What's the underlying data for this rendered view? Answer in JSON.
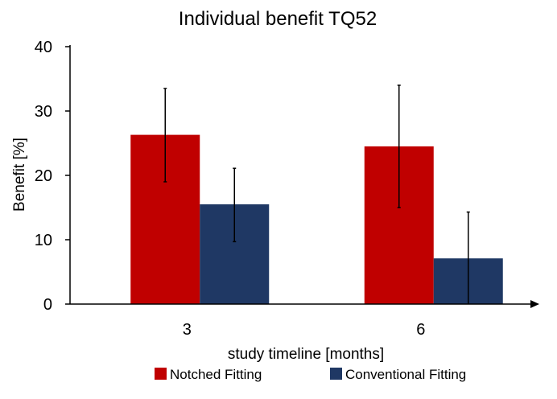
{
  "chart_data": {
    "type": "bar",
    "title": "Individual benefit TQ52",
    "xlabel": "study timeline [months]",
    "ylabel": "Benefit [%]",
    "categories": [
      "3",
      "6"
    ],
    "ylim": [
      0,
      40
    ],
    "yticks": [
      0,
      10,
      20,
      30,
      40
    ],
    "grid": false,
    "legend_position": "bottom",
    "series": [
      {
        "name": "Notched Fitting",
        "color": "#c00000",
        "values": [
          26.3,
          24.5
        ],
        "error_low": [
          19.0,
          15.0
        ],
        "error_high": [
          33.5,
          34.0
        ]
      },
      {
        "name": "Conventional Fitting",
        "color": "#1f3864",
        "values": [
          15.5,
          7.1
        ],
        "error_low": [
          9.7,
          0.0
        ],
        "error_high": [
          21.1,
          14.3
        ]
      }
    ]
  }
}
